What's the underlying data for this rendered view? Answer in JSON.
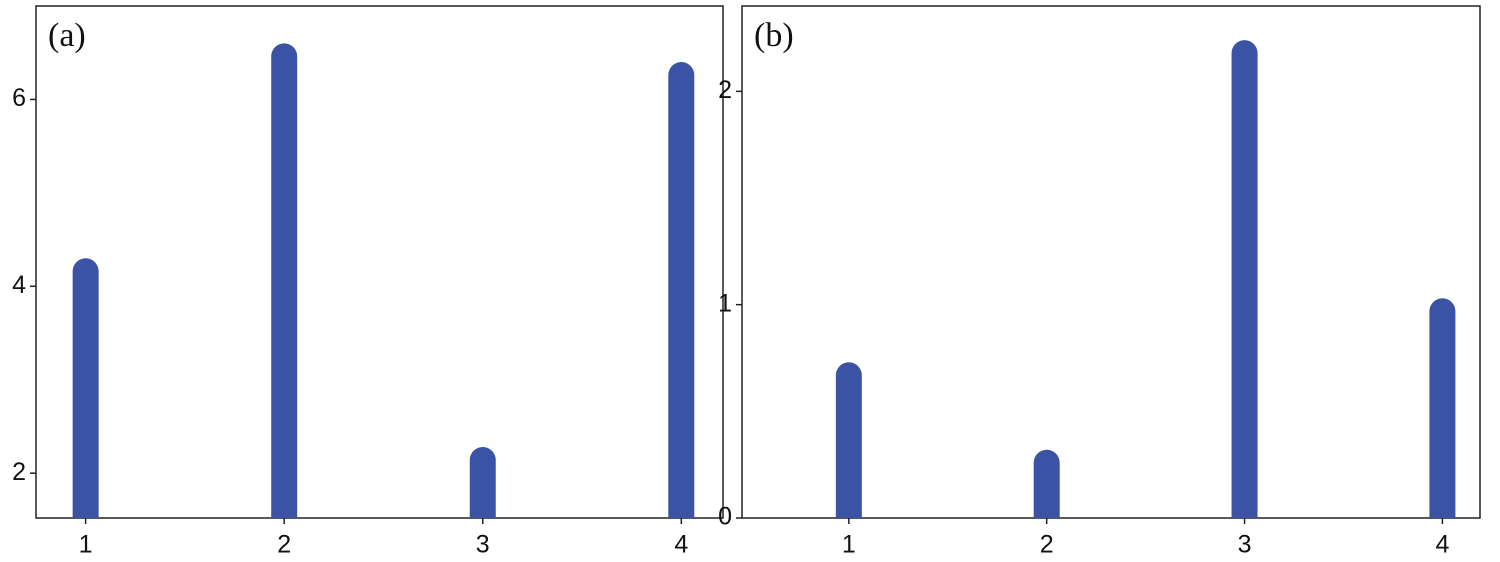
{
  "chart_data": [
    {
      "type": "bar",
      "title": "(a)",
      "x": [
        1,
        2,
        3,
        4
      ],
      "values": [
        4.3,
        6.6,
        2.28,
        6.4
      ],
      "color": "#3a53a4",
      "xlim": [
        0.75,
        4.21
      ],
      "xticks": [
        1,
        2,
        3,
        4
      ],
      "ylim": [
        1.52,
        7.0
      ],
      "yticks": [
        2,
        4,
        6
      ],
      "grid": false
    },
    {
      "type": "bar",
      "title": "(b)",
      "x": [
        1,
        2,
        3,
        4
      ],
      "values": [
        0.73,
        0.32,
        2.24,
        1.03
      ],
      "color": "#3a53a4",
      "xlim": [
        0.46,
        4.19
      ],
      "xticks": [
        1,
        2,
        3,
        4
      ],
      "ylim": [
        0,
        2.4
      ],
      "yticks": [
        0,
        1,
        2
      ],
      "grid": false
    }
  ]
}
